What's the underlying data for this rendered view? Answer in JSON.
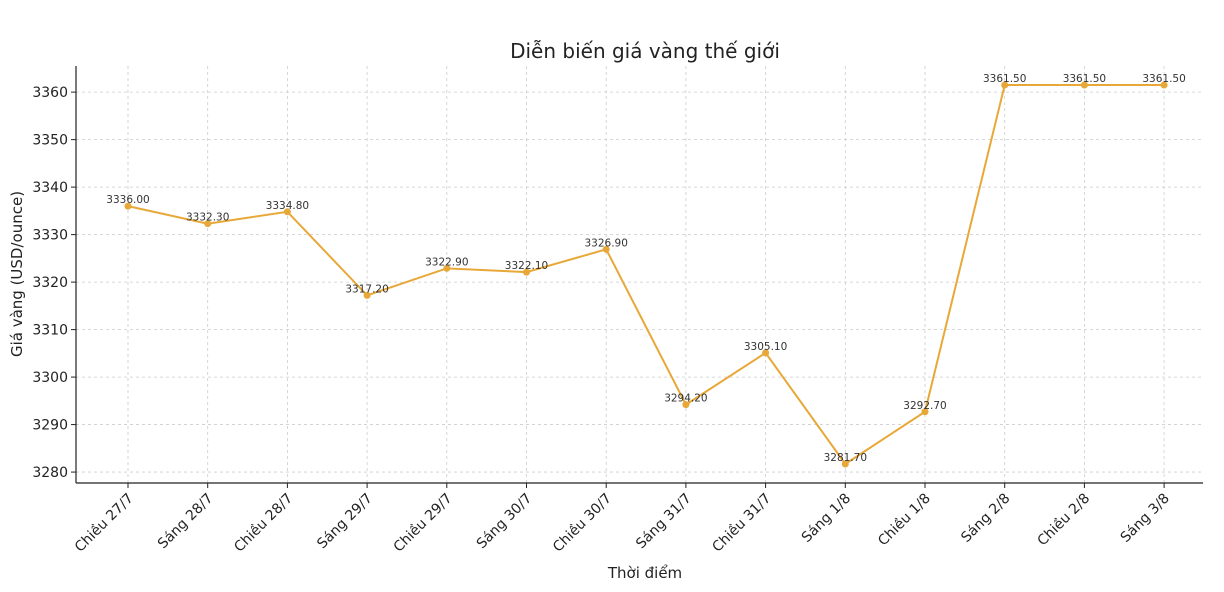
{
  "chart_data": {
    "type": "line",
    "title": "Diễn biến giá vàng thế giới",
    "xlabel": "Thời điểm",
    "ylabel": "Giá vàng (USD/ounce)",
    "categories": [
      "Chiều 27/7",
      "Sáng 28/7",
      "Chiều 28/7",
      "Sáng 29/7",
      "Chiều 29/7",
      "Sáng 30/7",
      "Chiều 30/7",
      "Sáng 31/7",
      "Chiều 31/7",
      "Sáng 1/8",
      "Chiều 1/8",
      "Sáng 2/8",
      "Chiều 2/8",
      "Sáng 3/8"
    ],
    "series": [
      {
        "values": [
          3336.0,
          3332.3,
          3334.8,
          3317.2,
          3322.9,
          3322.1,
          3326.9,
          3294.2,
          3305.1,
          3281.7,
          3292.7,
          3361.5,
          3361.5,
          3361.5
        ],
        "labels": [
          "3336.00",
          "3332.30",
          "3334.80",
          "3317.20",
          "3322.90",
          "3322.10",
          "3326.90",
          "3294.20",
          "3305.10",
          "3281.70",
          "3292.70",
          "3361.50",
          "3361.50",
          "3361.50"
        ]
      }
    ],
    "yticks": [
      "3280",
      "3290",
      "3300",
      "3310",
      "3320",
      "3330",
      "3340",
      "3350",
      "3360"
    ],
    "ylim": [
      3277.7,
      3365.5
    ],
    "grid": true,
    "line_color": "#E8A838"
  }
}
